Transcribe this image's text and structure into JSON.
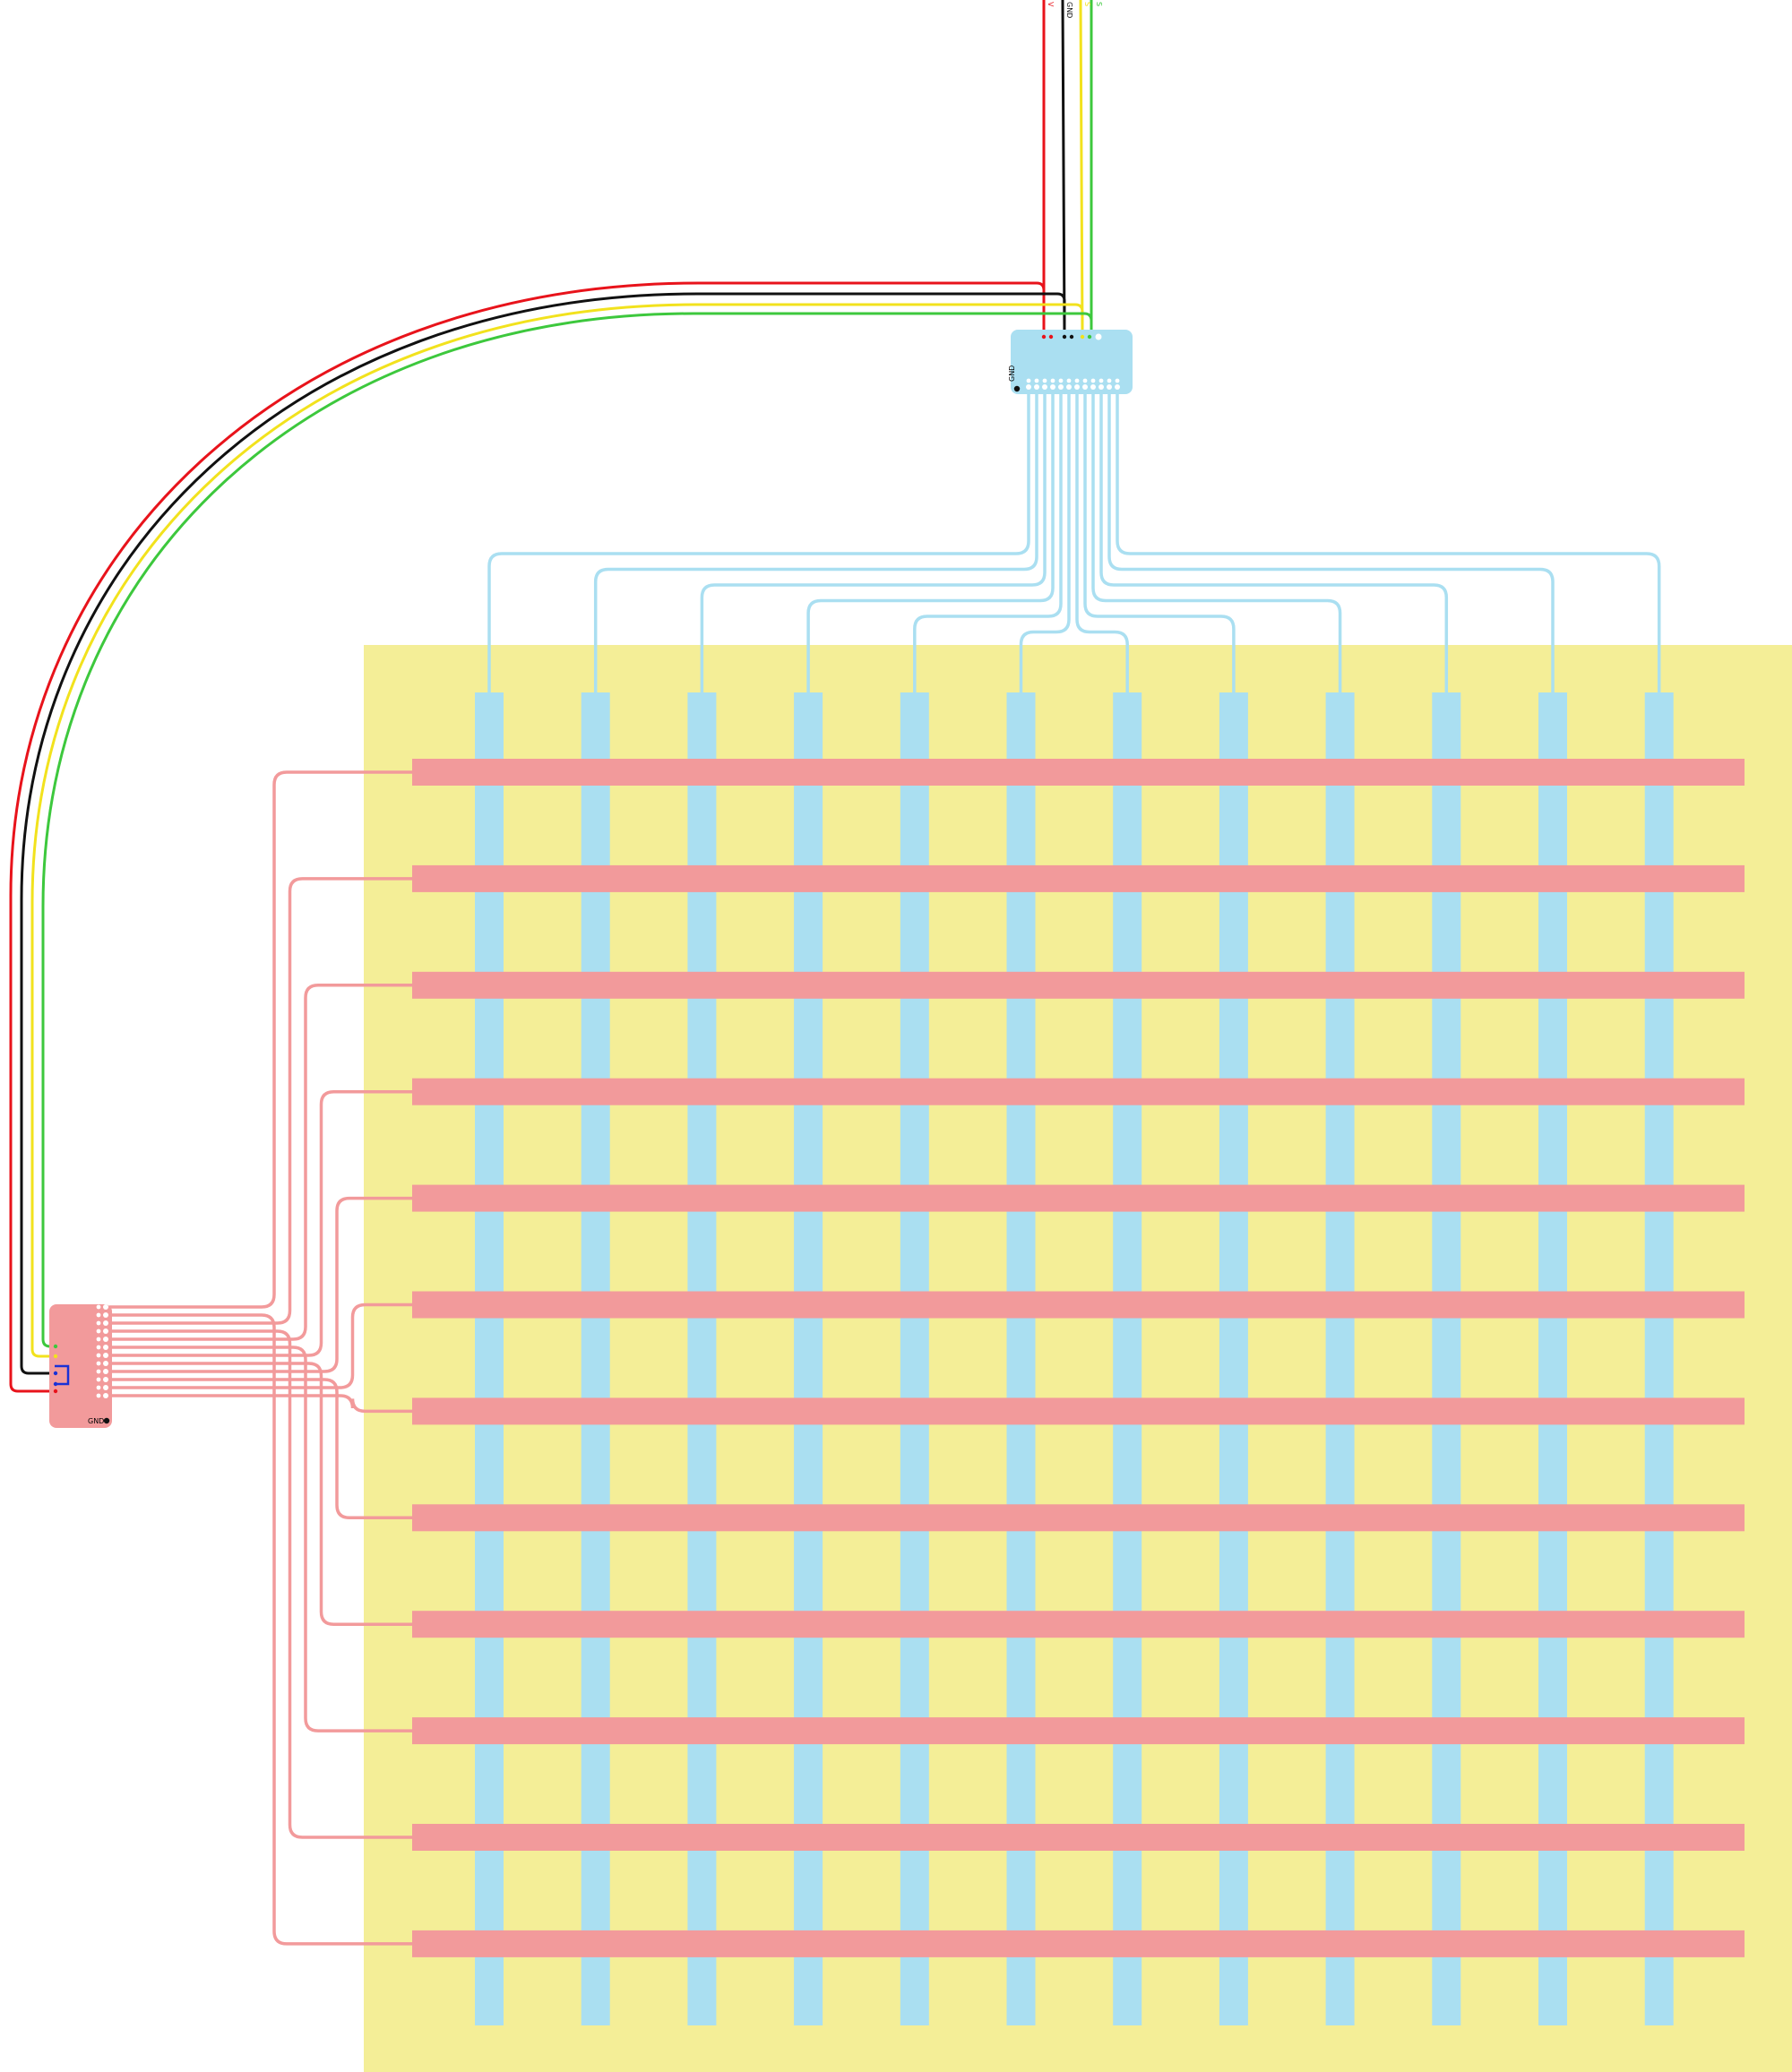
{
  "diagram": {
    "colors": {
      "background": "#ffffff",
      "sensor_substrate": "#f4ee97",
      "column_electrode": "#aadff1",
      "row_electrode": "#f29a9b",
      "column_trace": "#aadff1",
      "row_trace": "#f29a9b",
      "wire_vcc": "#e8131b",
      "wire_gnd": "#111111",
      "wire_sda": "#f2e21d",
      "wire_scl": "#3dc83d",
      "jumper": "#1a31d6",
      "pin_pad": "#ffffff",
      "ground_dot": "#111111"
    },
    "column_count": 12,
    "row_count": 12,
    "column_connector": {
      "label": "GND",
      "pin_count": 12,
      "bus_pins": [
        "VCC",
        "VCC",
        "GND",
        "GND",
        "SDA",
        "SCL",
        "NC"
      ]
    },
    "row_connector": {
      "label": "GND",
      "pin_count": 12,
      "bus_pins": [
        "SCL",
        "SDA",
        "GND",
        "VCC"
      ]
    },
    "bus_wires": [
      {
        "name": "VCC",
        "color": "#e8131b"
      },
      {
        "name": "GND",
        "color": "#111111"
      },
      {
        "name": "SDA",
        "color": "#f2e21d"
      },
      {
        "name": "SCL",
        "color": "#3dc83d"
      }
    ],
    "top_wire_labels": [
      "V",
      "GND",
      "S",
      "S"
    ]
  }
}
